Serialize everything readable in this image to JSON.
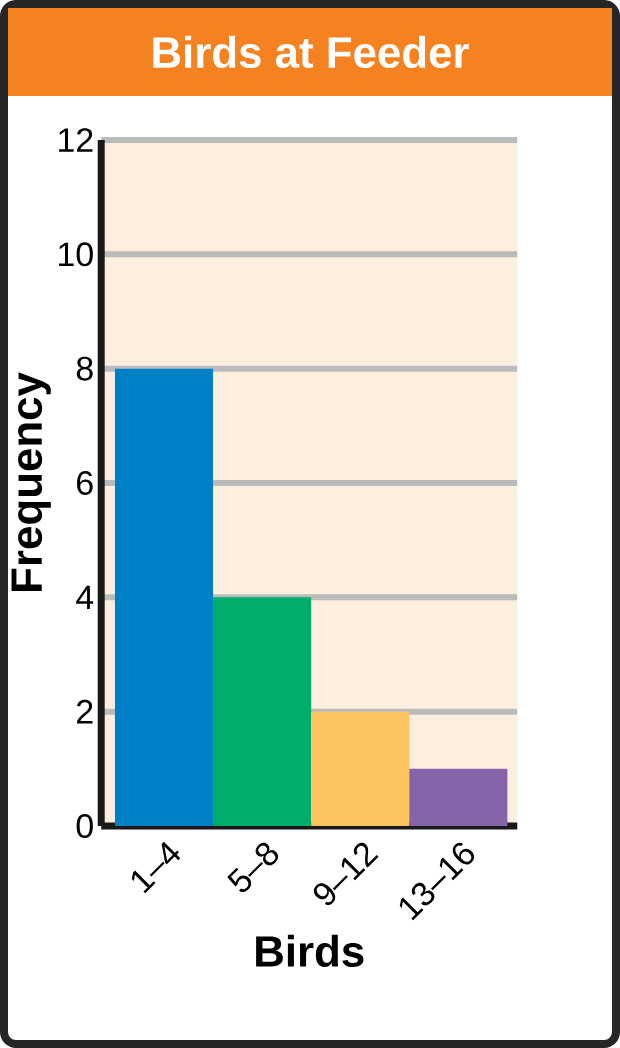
{
  "chart_data": {
    "type": "bar",
    "title": "Birds at Feeder",
    "xlabel": "Birds",
    "ylabel": "Frequency",
    "categories": [
      "1–4",
      "5–8",
      "9–12",
      "13–16"
    ],
    "values": [
      8,
      4,
      2,
      1
    ],
    "colors": [
      "#0080c6",
      "#00ad6b",
      "#fdc35f",
      "#8664aa"
    ],
    "ylim": [
      0,
      12
    ],
    "yticks": [
      0,
      2,
      4,
      6,
      8,
      10,
      12
    ],
    "grid": "y"
  }
}
